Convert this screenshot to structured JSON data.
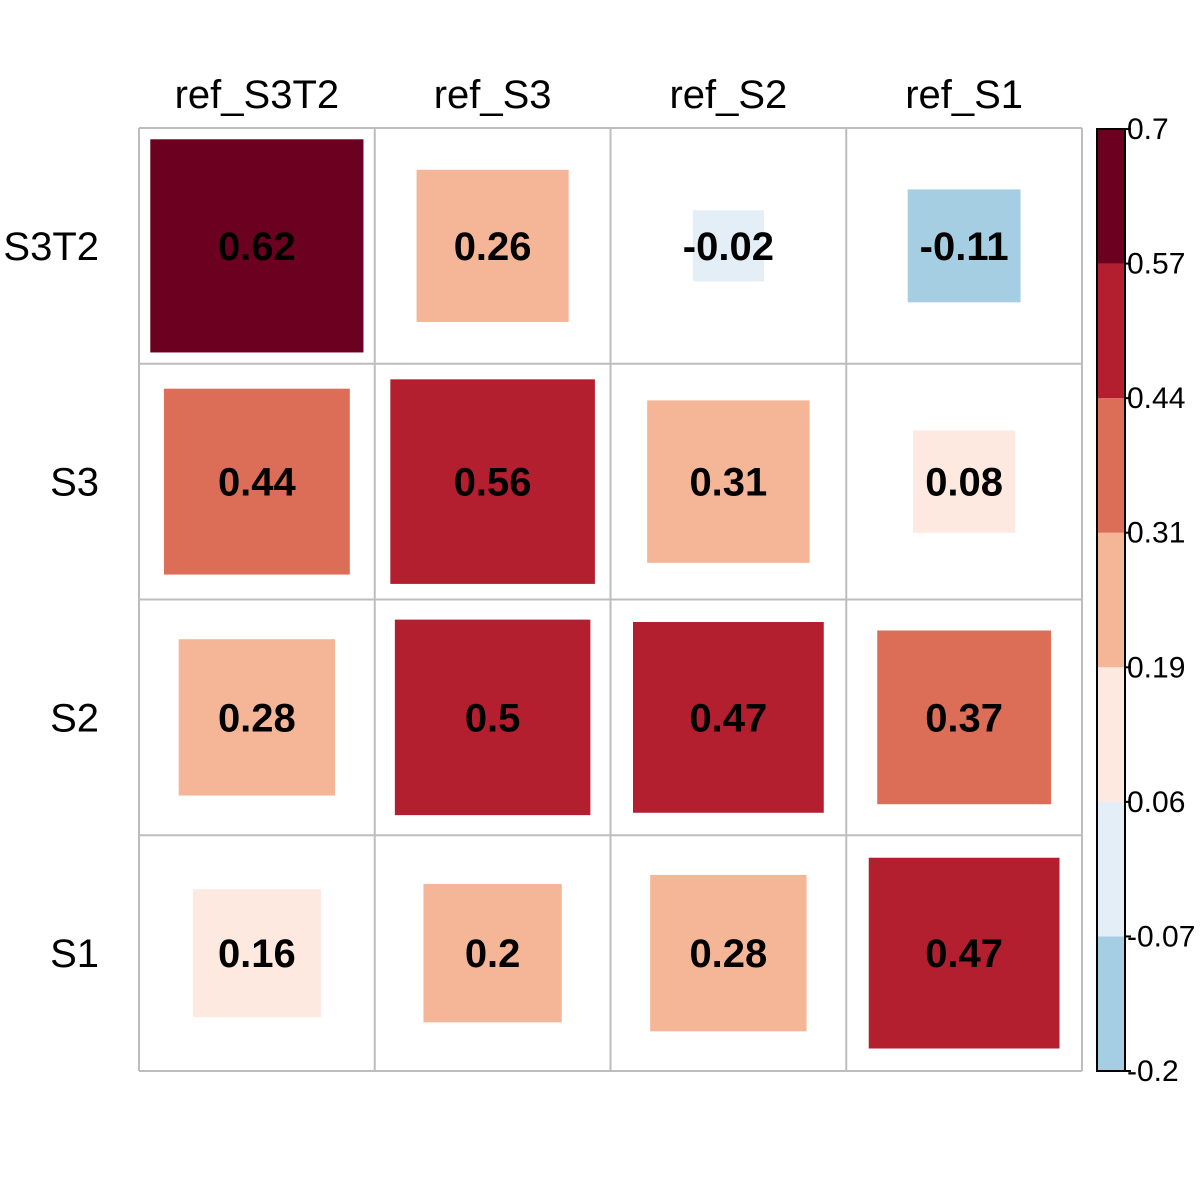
{
  "chart_data": {
    "type": "heatmap",
    "columns": [
      "ref_S3T2",
      "ref_S3",
      "ref_S2",
      "ref_S1"
    ],
    "rows": [
      "S3T2",
      "S3",
      "S2",
      "S1"
    ],
    "values": [
      [
        0.62,
        0.26,
        -0.02,
        -0.11
      ],
      [
        0.44,
        0.56,
        0.31,
        0.08
      ],
      [
        0.28,
        0.5,
        0.47,
        0.37
      ],
      [
        0.16,
        0.2,
        0.28,
        0.47
      ]
    ],
    "value_labels": [
      [
        "0.62",
        "0.26",
        "-0.02",
        "-0.11"
      ],
      [
        "0.44",
        "0.56",
        "0.31",
        "0.08"
      ],
      [
        "0.28",
        "0.5",
        "0.47",
        "0.37"
      ],
      [
        "0.16",
        "0.2",
        "0.28",
        "0.47"
      ]
    ],
    "colorbar": {
      "range": [
        -0.2,
        0.7
      ],
      "ticks": [
        "0.7",
        "0.57",
        "0.44",
        "0.31",
        "0.19",
        "0.06",
        "-0.07",
        "-0.2"
      ],
      "colors": [
        "#a6cee3",
        "#e3eef6",
        "#fde9df",
        "#f5b597",
        "#dc6e58",
        "#b31f2e",
        "#6b0020"
      ]
    },
    "mark_shape": "square sized by value",
    "grid": true
  }
}
